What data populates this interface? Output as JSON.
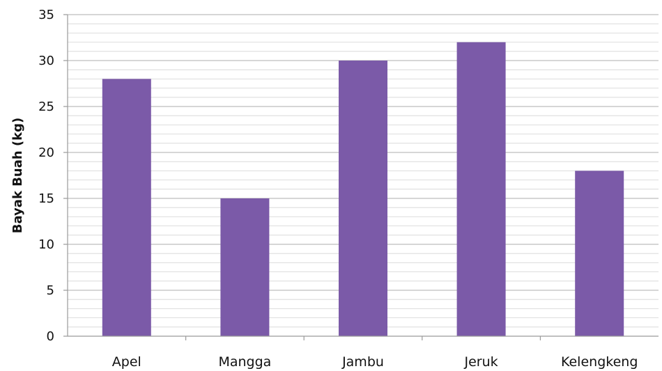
{
  "chart_data": {
    "type": "bar",
    "title": "",
    "xlabel": "",
    "ylabel": "Bayak Buah (kg)",
    "categories": [
      "Apel",
      "Mangga",
      "Jambu",
      "Jeruk",
      "Kelengkeng"
    ],
    "values": [
      28,
      15,
      30,
      32,
      18
    ],
    "ylim": [
      0,
      35
    ],
    "y_ticks": [
      "0",
      "5",
      "10",
      "15",
      "20",
      "25",
      "30",
      "35"
    ],
    "grid": true,
    "legend": "none",
    "bar_color": "#7b5aa8",
    "grid_color": "#d4d4d4"
  }
}
